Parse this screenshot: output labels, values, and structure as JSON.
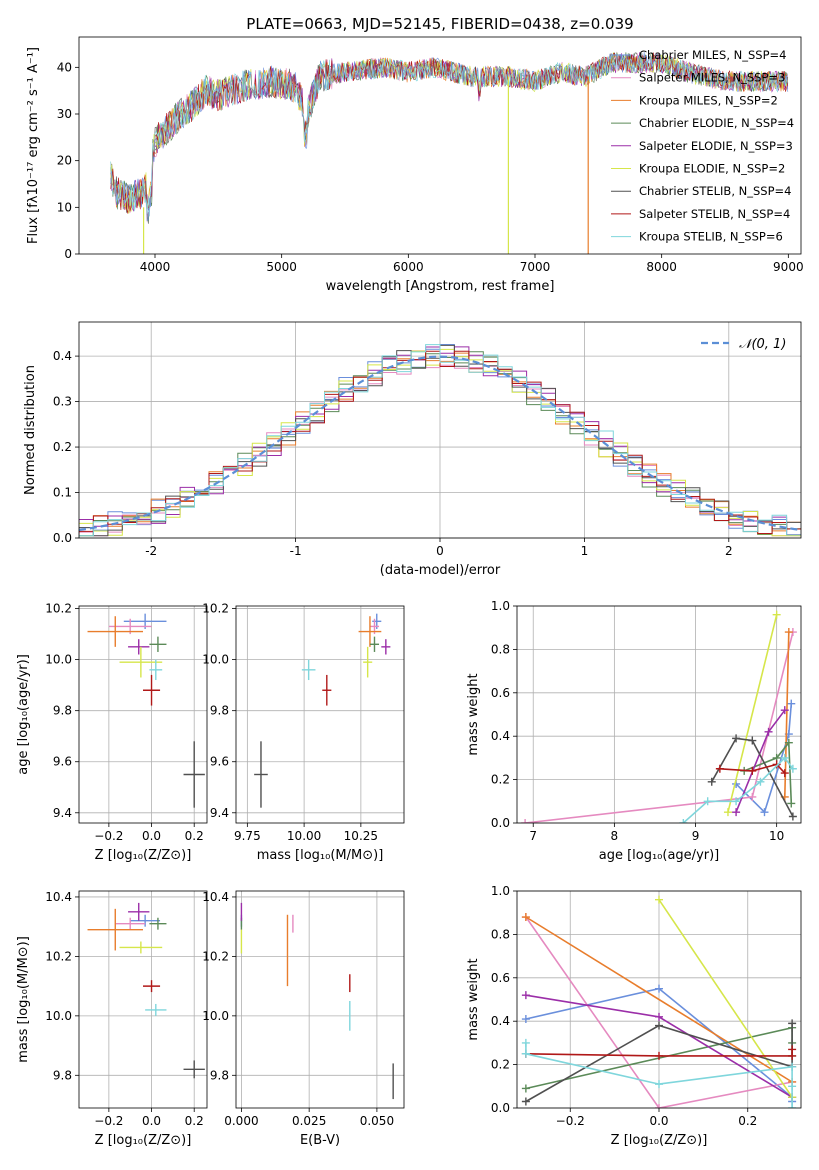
{
  "colors": {
    "miles_chabrier": "#6a8fdc",
    "miles_salpeter": "#e58ac0",
    "miles_kroupa": "#e87d2c",
    "elodie_chabrier": "#5b8a58",
    "elodie_salpeter": "#9b2ea8",
    "elodie_kroupa": "#d6e64a",
    "stelib_chabrier": "#505050",
    "stelib_salpeter": "#b01818",
    "stelib_kroupa": "#7fd6dc",
    "grid": "#b0b0b0",
    "normal": "#5b8fd6"
  },
  "chart_data": [
    {
      "id": "spectrum",
      "type": "line",
      "title": "PLATE=0663, MJD=52145, FIBERID=0438, z=0.039",
      "xlabel": "wavelength [Angstrom, rest frame]",
      "ylabel": "Flux [fλ10⁻¹⁷ erg cm⁻² s⁻¹ A⁻¹]",
      "xlim": [
        3400,
        9100
      ],
      "ylim": [
        0,
        46.5
      ],
      "xticks": [
        4000,
        5000,
        6000,
        7000,
        8000,
        9000
      ],
      "yticks": [
        0,
        10,
        20,
        30,
        40
      ],
      "legend_position": "top-right",
      "legend": [
        {
          "label": "Chabrier MILES, N_SSP=4",
          "color_key": "miles_chabrier"
        },
        {
          "label": "Salpeter MILES, N_SSP=3",
          "color_key": "miles_salpeter"
        },
        {
          "label": "Kroupa MILES, N_SSP=2",
          "color_key": "miles_kroupa"
        },
        {
          "label": "Chabrier ELODIE, N_SSP=4",
          "color_key": "elodie_chabrier"
        },
        {
          "label": "Salpeter ELODIE, N_SSP=3",
          "color_key": "elodie_salpeter"
        },
        {
          "label": "Kroupa ELODIE, N_SSP=2",
          "color_key": "elodie_kroupa"
        },
        {
          "label": "Chabrier STELIB, N_SSP=4",
          "color_key": "stelib_chabrier"
        },
        {
          "label": "Salpeter STELIB, N_SSP=4",
          "color_key": "stelib_salpeter"
        },
        {
          "label": "Kroupa STELIB, N_SSP=6",
          "color_key": "stelib_kroupa"
        }
      ],
      "continuum": {
        "x": [
          3650,
          3700,
          3800,
          3900,
          3950,
          4000,
          4100,
          4200,
          4300,
          4400,
          4500,
          4700,
          4900,
          5100,
          5200,
          5300,
          5500,
          5800,
          6000,
          6200,
          6500,
          6800,
          7000,
          7200,
          7400,
          7600,
          7800,
          8000,
          8200,
          8500,
          8800,
          9000
        ],
        "y": [
          17,
          13,
          12,
          13,
          16,
          24,
          27,
          30,
          32,
          35,
          34,
          36,
          37,
          36,
          30,
          38,
          39,
          40,
          39,
          40,
          38,
          38,
          37,
          39,
          38,
          41,
          41,
          41,
          39,
          37,
          37,
          37
        ]
      },
      "drop_lines": [
        {
          "color_key": "elodie_kroupa",
          "x": 3910,
          "from": 10,
          "to": 0
        },
        {
          "color_key": "elodie_kroupa",
          "x": 6790,
          "from": 38,
          "to": 0
        },
        {
          "color_key": "miles_kroupa",
          "x": 7420,
          "from": 38,
          "to": 0
        }
      ]
    },
    {
      "id": "residuals",
      "type": "histogram",
      "xlabel": "(data-model)/error",
      "ylabel": "Normed distribution",
      "xlim": [
        -2.5,
        2.5
      ],
      "ylim": [
        0,
        0.475
      ],
      "xticks": [
        -2,
        -1,
        0,
        1,
        2
      ],
      "yticks": [
        0.0,
        0.1,
        0.2,
        0.3,
        0.4
      ],
      "legend_position": "top-right",
      "reference_curve": {
        "label": "𝒩(0, 1)",
        "type": "normal",
        "mean": 0,
        "sigma": 1
      },
      "bin_width": 0.1,
      "series": [
        {
          "color_key": "miles_chabrier",
          "shift": 0.012,
          "seed": 1
        },
        {
          "color_key": "miles_salpeter",
          "shift": -0.008,
          "seed": 2
        },
        {
          "color_key": "miles_kroupa",
          "shift": 0.005,
          "seed": 3
        },
        {
          "color_key": "elodie_chabrier",
          "shift": 0.01,
          "seed": 4
        },
        {
          "color_key": "elodie_salpeter",
          "shift": -0.01,
          "seed": 5
        },
        {
          "color_key": "elodie_kroupa",
          "shift": 0.0,
          "seed": 6
        },
        {
          "color_key": "stelib_chabrier",
          "shift": -0.005,
          "seed": 7
        },
        {
          "color_key": "stelib_salpeter",
          "shift": 0.008,
          "seed": 8
        },
        {
          "color_key": "stelib_kroupa",
          "shift": -0.012,
          "seed": 9
        }
      ]
    },
    {
      "id": "age_vs_Z",
      "type": "scatter",
      "xlabel": "Z [log₁₀(Z/Z⊙)]",
      "ylabel": "age  [log₁₀(age/yr)]",
      "xlim": [
        -0.34,
        0.26
      ],
      "ylim": [
        9.36,
        10.21
      ],
      "xticks": [
        -0.2,
        0.0,
        0.2
      ],
      "xtick_labels": [
        "−0.2",
        "0.0",
        "0.2"
      ],
      "yticks": [
        9.4,
        9.6,
        9.8,
        10.0,
        10.2
      ],
      "points": [
        {
          "color_key": "miles_chabrier",
          "x": -0.03,
          "xerr": 0.1,
          "y": 10.15,
          "yerr": 0.03
        },
        {
          "color_key": "miles_salpeter",
          "x": -0.1,
          "xerr": 0.1,
          "y": 10.13,
          "yerr": 0.03
        },
        {
          "color_key": "miles_kroupa",
          "x": -0.17,
          "xerr": 0.13,
          "y": 10.11,
          "yerr": 0.06
        },
        {
          "color_key": "elodie_chabrier",
          "x": 0.03,
          "xerr": 0.04,
          "y": 10.06,
          "yerr": 0.03
        },
        {
          "color_key": "elodie_salpeter",
          "x": -0.06,
          "xerr": 0.05,
          "y": 10.05,
          "yerr": 0.03
        },
        {
          "color_key": "elodie_kroupa",
          "x": -0.05,
          "xerr": 0.1,
          "y": 9.99,
          "yerr": 0.06
        },
        {
          "color_key": "stelib_chabrier",
          "x": 0.2,
          "xerr": 0.05,
          "y": 9.55,
          "yerr": 0.13
        },
        {
          "color_key": "stelib_salpeter",
          "x": 0.0,
          "xerr": 0.04,
          "y": 9.88,
          "yerr": 0.06
        },
        {
          "color_key": "stelib_kroupa",
          "x": 0.02,
          "xerr": 0.03,
          "y": 9.96,
          "yerr": 0.04
        }
      ]
    },
    {
      "id": "age_vs_mass",
      "type": "scatter",
      "xlabel": "mass [log₁₀(M/M⊙)]",
      "ylabel": "",
      "xlim": [
        9.7,
        10.44
      ],
      "ylim": [
        9.36,
        10.21
      ],
      "xticks": [
        9.75,
        10.0,
        10.25
      ],
      "xtick_labels": [
        "9.75",
        "10.00",
        "10.25"
      ],
      "yticks": [
        9.4,
        9.6,
        9.8,
        10.0,
        10.2
      ],
      "points": [
        {
          "color_key": "miles_chabrier",
          "x": 10.32,
          "xerr": 0.02,
          "y": 10.15,
          "yerr": 0.03
        },
        {
          "color_key": "miles_salpeter",
          "x": 10.31,
          "xerr": 0.02,
          "y": 10.13,
          "yerr": 0.03
        },
        {
          "color_key": "miles_kroupa",
          "x": 10.29,
          "xerr": 0.05,
          "y": 10.11,
          "yerr": 0.06
        },
        {
          "color_key": "elodie_chabrier",
          "x": 10.31,
          "xerr": 0.02,
          "y": 10.06,
          "yerr": 0.03
        },
        {
          "color_key": "elodie_salpeter",
          "x": 10.36,
          "xerr": 0.02,
          "y": 10.05,
          "yerr": 0.03
        },
        {
          "color_key": "elodie_kroupa",
          "x": 10.28,
          "xerr": 0.02,
          "y": 9.99,
          "yerr": 0.06
        },
        {
          "color_key": "stelib_chabrier",
          "x": 9.81,
          "xerr": 0.03,
          "y": 9.55,
          "yerr": 0.13
        },
        {
          "color_key": "stelib_salpeter",
          "x": 10.1,
          "xerr": 0.02,
          "y": 9.88,
          "yerr": 0.06
        },
        {
          "color_key": "stelib_kroupa",
          "x": 10.02,
          "xerr": 0.03,
          "y": 9.96,
          "yerr": 0.04
        }
      ]
    },
    {
      "id": "weight_vs_age",
      "type": "line",
      "xlabel": "age  [log₁₀(age/yr)]",
      "ylabel": "mass weight",
      "xlim": [
        6.8,
        10.3
      ],
      "ylim": [
        0,
        1
      ],
      "xticks": [
        7,
        8,
        9,
        10
      ],
      "yticks": [
        0.0,
        0.2,
        0.4,
        0.6,
        0.8,
        1.0
      ],
      "series": [
        {
          "color_key": "miles_chabrier",
          "x": [
            9.5,
            9.85,
            10.15,
            10.18
          ],
          "y": [
            0.18,
            0.05,
            0.41,
            0.55
          ]
        },
        {
          "color_key": "miles_salpeter",
          "x": [
            6.9,
            9.7,
            10.2
          ],
          "y": [
            0.0,
            0.12,
            0.88
          ]
        },
        {
          "color_key": "miles_kroupa",
          "x": [
            10.1,
            10.15
          ],
          "y": [
            0.12,
            0.88
          ]
        },
        {
          "color_key": "elodie_chabrier",
          "x": [
            9.6,
            10.0,
            10.15,
            10.18
          ],
          "y": [
            0.24,
            0.3,
            0.37,
            0.09
          ]
        },
        {
          "color_key": "elodie_salpeter",
          "x": [
            9.5,
            9.9,
            10.1
          ],
          "y": [
            0.05,
            0.42,
            0.52
          ]
        },
        {
          "color_key": "elodie_kroupa",
          "x": [
            9.4,
            10.0
          ],
          "y": [
            0.05,
            0.96
          ]
        },
        {
          "color_key": "stelib_chabrier",
          "x": [
            9.2,
            9.5,
            9.7,
            10.2
          ],
          "y": [
            0.19,
            0.39,
            0.38,
            0.03
          ]
        },
        {
          "color_key": "stelib_salpeter",
          "x": [
            9.3,
            9.7,
            10.0,
            10.1
          ],
          "y": [
            0.25,
            0.24,
            0.27,
            0.23
          ]
        },
        {
          "color_key": "stelib_kroupa",
          "x": [
            8.85,
            9.15,
            9.5,
            9.8,
            10.1,
            10.2
          ],
          "y": [
            0.0,
            0.1,
            0.1,
            0.19,
            0.3,
            0.25
          ]
        }
      ]
    },
    {
      "id": "mass_vs_Z",
      "type": "scatter",
      "xlabel": "Z [log₁₀(Z/Z⊙)]",
      "ylabel": "mass [log₁₀(M/M⊙)]",
      "xlim": [
        -0.34,
        0.26
      ],
      "ylim": [
        9.69,
        10.42
      ],
      "xticks": [
        -0.2,
        0.0,
        0.2
      ],
      "xtick_labels": [
        "−0.2",
        "0.0",
        "0.2"
      ],
      "yticks": [
        9.8,
        10.0,
        10.2,
        10.4
      ],
      "points": [
        {
          "color_key": "miles_chabrier",
          "x": -0.03,
          "xerr": 0.07,
          "y": 10.32,
          "yerr": 0.02
        },
        {
          "color_key": "miles_salpeter",
          "x": -0.1,
          "xerr": 0.07,
          "y": 10.31,
          "yerr": 0.02
        },
        {
          "color_key": "miles_kroupa",
          "x": -0.17,
          "xerr": 0.13,
          "y": 10.29,
          "yerr": 0.07
        },
        {
          "color_key": "elodie_chabrier",
          "x": 0.03,
          "xerr": 0.04,
          "y": 10.31,
          "yerr": 0.02
        },
        {
          "color_key": "elodie_salpeter",
          "x": -0.06,
          "xerr": 0.05,
          "y": 10.35,
          "yerr": 0.03
        },
        {
          "color_key": "elodie_kroupa",
          "x": -0.05,
          "xerr": 0.1,
          "y": 10.23,
          "yerr": 0.02
        },
        {
          "color_key": "stelib_chabrier",
          "x": 0.2,
          "xerr": 0.05,
          "y": 9.82,
          "yerr": 0.03
        },
        {
          "color_key": "stelib_salpeter",
          "x": 0.0,
          "xerr": 0.04,
          "y": 10.1,
          "yerr": 0.02
        },
        {
          "color_key": "stelib_kroupa",
          "x": 0.02,
          "xerr": 0.05,
          "y": 10.02,
          "yerr": 0.02
        }
      ]
    },
    {
      "id": "mass_vs_ebv",
      "type": "scatter",
      "xlabel": "E(B-V)",
      "ylabel": "",
      "xlim": [
        -0.002,
        0.06
      ],
      "ylim": [
        9.69,
        10.42
      ],
      "xticks": [
        0.0,
        0.025,
        0.05
      ],
      "xtick_labels": [
        "0.000",
        "0.025",
        "0.050"
      ],
      "yticks": [
        9.8,
        10.0,
        10.2,
        10.4
      ],
      "points": [
        {
          "color_key": "miles_chabrier",
          "x": 0.0,
          "xerr": 0,
          "y": 10.32,
          "yerr": 0.02
        },
        {
          "color_key": "miles_salpeter",
          "x": 0.019,
          "xerr": 0,
          "y": 10.31,
          "yerr": 0.03
        },
        {
          "color_key": "miles_kroupa",
          "x": 0.017,
          "xerr": 0,
          "y": 10.22,
          "yerr": 0.12
        },
        {
          "color_key": "elodie_chabrier",
          "x": 0.0,
          "xerr": 0,
          "y": 10.31,
          "yerr": 0.02
        },
        {
          "color_key": "elodie_salpeter",
          "x": 0.0,
          "xerr": 0,
          "y": 10.35,
          "yerr": 0.03
        },
        {
          "color_key": "elodie_kroupa",
          "x": 0.0,
          "xerr": 0,
          "y": 10.25,
          "yerr": 0.04
        },
        {
          "color_key": "stelib_chabrier",
          "x": 0.056,
          "xerr": 0,
          "y": 9.78,
          "yerr": 0.06
        },
        {
          "color_key": "stelib_salpeter",
          "x": 0.04,
          "xerr": 0,
          "y": 10.11,
          "yerr": 0.03
        },
        {
          "color_key": "stelib_kroupa",
          "x": 0.04,
          "xerr": 0,
          "y": 10.0,
          "yerr": 0.05
        }
      ]
    },
    {
      "id": "weight_vs_Z",
      "type": "line",
      "xlabel": "Z [log₁₀(Z/Z⊙)]",
      "ylabel": "mass weight",
      "xlim": [
        -0.32,
        0.32
      ],
      "ylim": [
        0,
        1
      ],
      "xticks": [
        -0.2,
        0.0,
        0.2
      ],
      "xtick_labels": [
        "−0.2",
        "0.0",
        "0.2"
      ],
      "yticks": [
        0.0,
        0.2,
        0.4,
        0.6,
        0.8,
        1.0
      ],
      "series": [
        {
          "color_key": "miles_chabrier",
          "x": [
            -0.3,
            0.0,
            0.3,
            0.3
          ],
          "y": [
            0.41,
            0.55,
            0.05,
            0.03
          ]
        },
        {
          "color_key": "miles_salpeter",
          "x": [
            -0.3,
            0.0,
            0.3
          ],
          "y": [
            0.88,
            0.0,
            0.12
          ]
        },
        {
          "color_key": "miles_kroupa",
          "x": [
            -0.3,
            0.3
          ],
          "y": [
            0.88,
            0.12
          ]
        },
        {
          "color_key": "elodie_chabrier",
          "x": [
            -0.3,
            0.3,
            0.3,
            0.3
          ],
          "y": [
            0.09,
            0.37,
            0.24,
            0.3
          ]
        },
        {
          "color_key": "elodie_salpeter",
          "x": [
            -0.3,
            0.0,
            0.3
          ],
          "y": [
            0.52,
            0.42,
            0.05
          ]
        },
        {
          "color_key": "elodie_kroupa",
          "x": [
            0.0,
            0.3
          ],
          "y": [
            0.96,
            0.05
          ]
        },
        {
          "color_key": "stelib_chabrier",
          "x": [
            -0.3,
            0.0,
            0.3,
            0.3
          ],
          "y": [
            0.03,
            0.38,
            0.19,
            0.39
          ]
        },
        {
          "color_key": "stelib_salpeter",
          "x": [
            -0.3,
            0.0,
            0.3,
            0.3
          ],
          "y": [
            0.25,
            0.24,
            0.24,
            0.27
          ]
        },
        {
          "color_key": "stelib_kroupa",
          "x": [
            -0.3,
            -0.3,
            0.0,
            0.3,
            0.3,
            0.3
          ],
          "y": [
            0.3,
            0.25,
            0.11,
            0.19,
            0.1,
            0.0
          ]
        }
      ]
    }
  ]
}
